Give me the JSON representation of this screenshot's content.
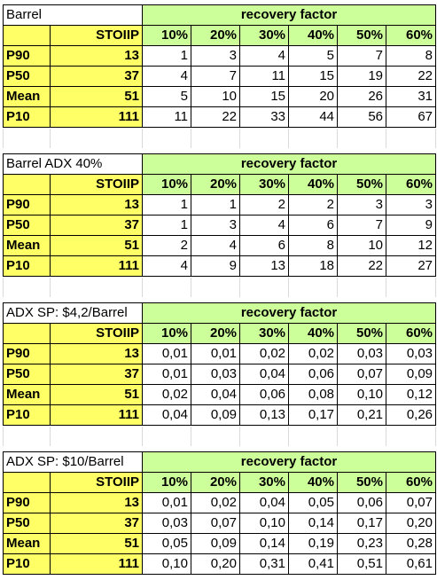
{
  "tables": [
    {
      "title": "Barrel",
      "rf_header": "recovery factor",
      "stoiip_label": "STOIIP",
      "percents": [
        "10%",
        "20%",
        "30%",
        "40%",
        "50%",
        "60%"
      ],
      "rows": [
        {
          "label": "P90",
          "stoiip": "13",
          "values": [
            "1",
            "3",
            "4",
            "5",
            "7",
            "8"
          ]
        },
        {
          "label": "P50",
          "stoiip": "37",
          "values": [
            "4",
            "7",
            "11",
            "15",
            "19",
            "22"
          ]
        },
        {
          "label": "Mean",
          "stoiip": "51",
          "values": [
            "5",
            "10",
            "15",
            "20",
            "26",
            "31"
          ]
        },
        {
          "label": "P10",
          "stoiip": "111",
          "values": [
            "11",
            "22",
            "33",
            "44",
            "56",
            "67"
          ]
        }
      ]
    },
    {
      "title": "Barrel ADX 40%",
      "rf_header": "recovery factor",
      "stoiip_label": "STOIIP",
      "percents": [
        "10%",
        "20%",
        "30%",
        "40%",
        "50%",
        "60%"
      ],
      "rows": [
        {
          "label": "P90",
          "stoiip": "13",
          "values": [
            "1",
            "1",
            "2",
            "2",
            "3",
            "3"
          ]
        },
        {
          "label": "P50",
          "stoiip": "37",
          "values": [
            "1",
            "3",
            "4",
            "6",
            "7",
            "9"
          ]
        },
        {
          "label": "Mean",
          "stoiip": "51",
          "values": [
            "2",
            "4",
            "6",
            "8",
            "10",
            "12"
          ]
        },
        {
          "label": "P10",
          "stoiip": "111",
          "values": [
            "4",
            "9",
            "13",
            "18",
            "22",
            "27"
          ]
        }
      ]
    },
    {
      "title": "ADX SP: $4,2/Barrel",
      "rf_header": "recovery factor",
      "stoiip_label": "STOIIP",
      "percents": [
        "10%",
        "20%",
        "30%",
        "40%",
        "50%",
        "60%"
      ],
      "rows": [
        {
          "label": "P90",
          "stoiip": "13",
          "values": [
            "0,01",
            "0,01",
            "0,02",
            "0,02",
            "0,03",
            "0,03"
          ]
        },
        {
          "label": "P50",
          "stoiip": "37",
          "values": [
            "0,01",
            "0,03",
            "0,04",
            "0,06",
            "0,07",
            "0,09"
          ]
        },
        {
          "label": "Mean",
          "stoiip": "51",
          "values": [
            "0,02",
            "0,04",
            "0,06",
            "0,08",
            "0,10",
            "0,12"
          ]
        },
        {
          "label": "P10",
          "stoiip": "111",
          "values": [
            "0,04",
            "0,09",
            "0,13",
            "0,17",
            "0,21",
            "0,26"
          ]
        }
      ]
    },
    {
      "title": "ADX SP: $10/Barrel",
      "rf_header": "recovery factor",
      "stoiip_label": "STOIIP",
      "percents": [
        "10%",
        "20%",
        "30%",
        "40%",
        "50%",
        "60%"
      ],
      "rows": [
        {
          "label": "P90",
          "stoiip": "13",
          "values": [
            "0,01",
            "0,02",
            "0,04",
            "0,05",
            "0,06",
            "0,07"
          ]
        },
        {
          "label": "P50",
          "stoiip": "37",
          "values": [
            "0,03",
            "0,07",
            "0,10",
            "0,14",
            "0,17",
            "0,20"
          ]
        },
        {
          "label": "Mean",
          "stoiip": "51",
          "values": [
            "0,05",
            "0,09",
            "0,14",
            "0,19",
            "0,23",
            "0,28"
          ]
        },
        {
          "label": "P10",
          "stoiip": "111",
          "values": [
            "0,10",
            "0,20",
            "0,31",
            "0,41",
            "0,51",
            "0,61"
          ]
        }
      ]
    }
  ],
  "colors": {
    "header_green": "#ccff99",
    "label_yellow": "#ffff66"
  }
}
